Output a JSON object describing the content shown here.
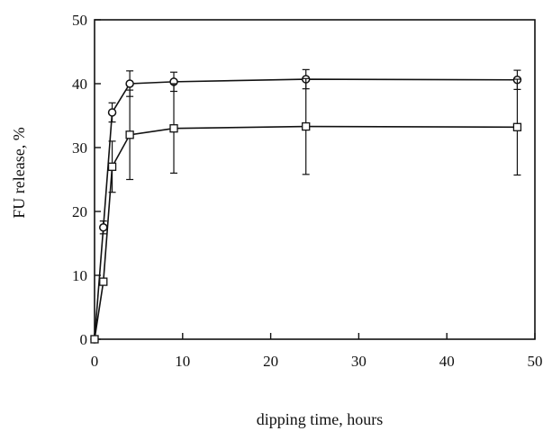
{
  "chart_data": {
    "type": "line",
    "xlabel": "dipping time, hours",
    "ylabel": "FU release, %",
    "xlim": [
      0,
      50
    ],
    "ylim": [
      0,
      50
    ],
    "xticks": [
      0,
      10,
      20,
      30,
      40,
      50
    ],
    "yticks": [
      0,
      10,
      20,
      30,
      40,
      50
    ],
    "grid": false,
    "series": [
      {
        "marker": "circle",
        "color": "#111111",
        "x": [
          0,
          1,
          2,
          4,
          9,
          24,
          48
        ],
        "y": [
          0,
          17.5,
          35.5,
          40,
          40.3,
          40.7,
          40.6
        ],
        "err": [
          0,
          1,
          1.5,
          2,
          1.5,
          1.5,
          1.5
        ]
      },
      {
        "marker": "square",
        "color": "#111111",
        "x": [
          0,
          1,
          2,
          4,
          9,
          24,
          48
        ],
        "y": [
          0,
          9,
          27,
          32,
          33,
          33.3,
          33.2
        ],
        "err": [
          0,
          0,
          4,
          7,
          7,
          7.5,
          7.5
        ]
      }
    ]
  }
}
